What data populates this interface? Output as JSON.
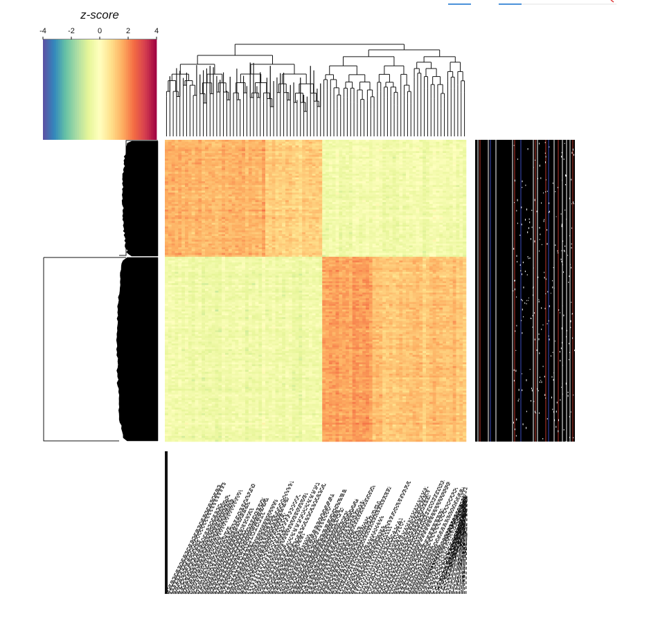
{
  "chart_data": {
    "type": "heatmap",
    "legend": {
      "title": "z-score",
      "ticks": [
        "-4",
        "-2",
        "0",
        "2",
        "4"
      ],
      "range": [
        -4,
        4
      ],
      "palette": "Spectral (reversed)",
      "colors": [
        "#5e4fa2",
        "#3288bd",
        "#66c2a5",
        "#abdda4",
        "#e6f598",
        "#ffffbf",
        "#fee08b",
        "#fdae61",
        "#f46d43",
        "#d53e4f",
        "#9e0142"
      ]
    },
    "row_clusters": [
      {
        "cluster": 1,
        "fraction_of_rows": 0.39,
        "pattern": "high in left column group, low in right column group"
      },
      {
        "cluster": 2,
        "fraction_of_rows": 0.61,
        "pattern": "low in left column group, high in right column group"
      }
    ],
    "column_groups": [
      {
        "group": "left",
        "fraction_of_columns": 0.52
      },
      {
        "group": "right",
        "fraction_of_columns": 0.48
      }
    ],
    "column_labels": "illegible (dense overlapping rotated text)",
    "has_row_dendrogram": true,
    "has_column_dendrogram": true,
    "has_row_annotation_panel": true
  },
  "colors": {
    "top_tab_accent": "#4a90d9",
    "annotation_background": "#000000",
    "annotation_stripe_red": "#c0392b",
    "annotation_stripe_blue": "#3b4cc0"
  }
}
